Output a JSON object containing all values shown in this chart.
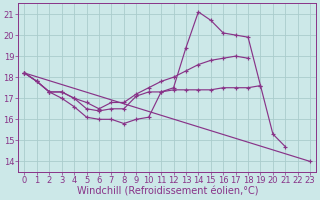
{
  "bg_color": "#cce8e8",
  "grid_color": "#aacccc",
  "line_color": "#883388",
  "xlabel": "Windchill (Refroidissement éolien,°C)",
  "xlabel_fontsize": 7,
  "tick_fontsize": 6,
  "xlim": [
    -0.5,
    23.5
  ],
  "ylim": [
    13.5,
    21.5
  ],
  "yticks": [
    14,
    15,
    16,
    17,
    18,
    19,
    20,
    21
  ],
  "xticks": [
    0,
    1,
    2,
    3,
    4,
    5,
    6,
    7,
    8,
    9,
    10,
    11,
    12,
    13,
    14,
    15,
    16,
    17,
    18,
    19,
    20,
    21,
    22,
    23
  ],
  "lines": [
    {
      "x": [
        0,
        1,
        2,
        3,
        4,
        5,
        6,
        7,
        8,
        9,
        10,
        11,
        12,
        13,
        14,
        15,
        16,
        17,
        18,
        19,
        20,
        21
      ],
      "y": [
        18.2,
        17.8,
        17.3,
        17.0,
        16.6,
        16.1,
        16.0,
        16.0,
        15.8,
        16.0,
        16.1,
        17.3,
        17.5,
        19.4,
        21.1,
        20.7,
        20.1,
        20.0,
        19.9,
        17.6,
        15.3,
        14.7
      ]
    },
    {
      "x": [
        0,
        1,
        2,
        3,
        4,
        5,
        6,
        7,
        8,
        9,
        10,
        11,
        12,
        13,
        14,
        15,
        16,
        17,
        18
      ],
      "y": [
        18.2,
        17.8,
        17.3,
        17.3,
        17.0,
        16.8,
        16.5,
        16.8,
        16.8,
        17.2,
        17.5,
        17.8,
        18.0,
        18.3,
        18.6,
        18.8,
        18.9,
        19.0,
        18.9
      ]
    },
    {
      "x": [
        0,
        1,
        2,
        3,
        4,
        5,
        6,
        7,
        8,
        9,
        10,
        11,
        12,
        13,
        14,
        15,
        16,
        17,
        18,
        19
      ],
      "y": [
        18.2,
        17.8,
        17.3,
        17.3,
        17.0,
        16.5,
        16.4,
        16.5,
        16.5,
        17.1,
        17.3,
        17.3,
        17.4,
        17.4,
        17.4,
        17.4,
        17.5,
        17.5,
        17.5,
        17.6
      ]
    },
    {
      "comment": "straight diagonal from 0,18.2 to 23,14.0",
      "x": [
        0,
        23
      ],
      "y": [
        18.2,
        14.0
      ]
    }
  ]
}
